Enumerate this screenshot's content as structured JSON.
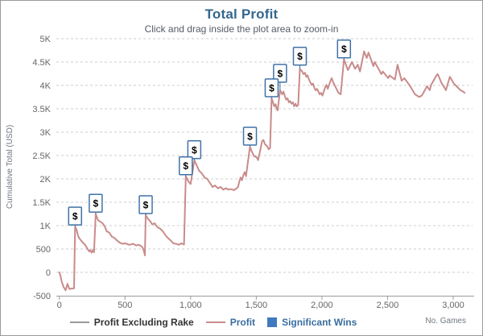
{
  "header": {
    "title": "Total Profit",
    "subtitle": "Click and drag inside the plot area to zoom-in"
  },
  "legend": {
    "items": [
      {
        "label": "Profit Excluding Rake",
        "sample": "line",
        "sample_color": "#999999",
        "text_color": "#333333"
      },
      {
        "label": "Profit",
        "sample": "line",
        "sample_color": "#C98B8B",
        "text_color": "#3A6DA0"
      },
      {
        "label": "Significant Wins",
        "sample": "square",
        "sample_color": "#4179C0",
        "text_color": "#3A6DA0"
      }
    ]
  },
  "chart_data": {
    "type": "line",
    "title": "Total Profit",
    "subtitle": "Click and drag inside the plot area to zoom-in",
    "xlabel": "No. Games",
    "ylabel": "Cumulative Total (USD)",
    "xlim": [
      0,
      3160
    ],
    "ylim": [
      -500,
      5000
    ],
    "grid": "horizontal dotted lines only",
    "legend_position": "bottom-center",
    "x_ticks": [
      {
        "value": 0,
        "label": "0"
      },
      {
        "value": 500,
        "label": "500"
      },
      {
        "value": 1000,
        "label": "1,000"
      },
      {
        "value": 1500,
        "label": "1,500"
      },
      {
        "value": 2000,
        "label": "2,000"
      },
      {
        "value": 2500,
        "label": "2,500"
      },
      {
        "value": 3000,
        "label": "3,000"
      }
    ],
    "y_ticks": [
      {
        "value": -500,
        "label": "-500"
      },
      {
        "value": 0,
        "label": "0"
      },
      {
        "value": 500,
        "label": "500"
      },
      {
        "value": 1000,
        "label": "1K"
      },
      {
        "value": 1500,
        "label": "1.5K"
      },
      {
        "value": 2000,
        "label": "2K"
      },
      {
        "value": 2500,
        "label": "2.5K"
      },
      {
        "value": 3000,
        "label": "3K"
      },
      {
        "value": 3500,
        "label": "3.5K"
      },
      {
        "value": 4000,
        "label": "4K"
      },
      {
        "value": 4500,
        "label": "4.5K"
      },
      {
        "value": 5000,
        "label": "5K"
      }
    ],
    "colors": {
      "title": "#34678D",
      "subtitle": "#555C66",
      "tick_label": "#666666",
      "axis_label": "#6F7780",
      "grid": "#CCCCCC",
      "axis_line": "#9B9B9B",
      "profit_line": "#C98B8B",
      "flag_fill": "#FFFFFF",
      "flag_border": "#4172A8",
      "flag_text": "#000000",
      "significant_wins": "#4179C0"
    },
    "series": [
      {
        "name": "Profit Excluding Rake",
        "color": "#999999",
        "visible_in_plot": false,
        "points": []
      },
      {
        "name": "Profit",
        "color": "#C98B8B",
        "visible_in_plot": true,
        "points": [
          [
            0,
            0
          ],
          [
            8,
            -60
          ],
          [
            18,
            -195
          ],
          [
            32,
            -310
          ],
          [
            48,
            -385
          ],
          [
            62,
            -245
          ],
          [
            76,
            -355
          ],
          [
            112,
            -340
          ],
          [
            120,
            980
          ],
          [
            131,
            910
          ],
          [
            142,
            790
          ],
          [
            150,
            735
          ],
          [
            163,
            690
          ],
          [
            175,
            650
          ],
          [
            196,
            590
          ],
          [
            214,
            505
          ],
          [
            227,
            450
          ],
          [
            236,
            478
          ],
          [
            246,
            420
          ],
          [
            256,
            478
          ],
          [
            264,
            430
          ],
          [
            277,
            1255
          ],
          [
            287,
            1170
          ],
          [
            297,
            1110
          ],
          [
            315,
            1080
          ],
          [
            330,
            1050
          ],
          [
            349,
            965
          ],
          [
            360,
            880
          ],
          [
            380,
            850
          ],
          [
            400,
            765
          ],
          [
            420,
            735
          ],
          [
            441,
            680
          ],
          [
            461,
            633
          ],
          [
            482,
            610
          ],
          [
            502,
            620
          ],
          [
            532,
            590
          ],
          [
            563,
            610
          ],
          [
            584,
            575
          ],
          [
            604,
            590
          ],
          [
            615,
            575
          ],
          [
            634,
            535
          ],
          [
            645,
            450
          ],
          [
            652,
            362
          ],
          [
            658,
            1225
          ],
          [
            676,
            1140
          ],
          [
            688,
            1110
          ],
          [
            708,
            1025
          ],
          [
            726,
            1052
          ],
          [
            747,
            966
          ],
          [
            767,
            937
          ],
          [
            788,
            879
          ],
          [
            808,
            793
          ],
          [
            828,
            735
          ],
          [
            849,
            678
          ],
          [
            869,
            621
          ],
          [
            890,
            609
          ],
          [
            910,
            590
          ],
          [
            930,
            621
          ],
          [
            950,
            595
          ],
          [
            963,
            2057
          ],
          [
            984,
            1940
          ],
          [
            1000,
            1890
          ],
          [
            1028,
            2400
          ],
          [
            1065,
            2172
          ],
          [
            1086,
            2115
          ],
          [
            1106,
            2029
          ],
          [
            1126,
            2000
          ],
          [
            1147,
            1914
          ],
          [
            1167,
            1828
          ],
          [
            1187,
            1857
          ],
          [
            1208,
            1799
          ],
          [
            1228,
            1828
          ],
          [
            1248,
            1771
          ],
          [
            1269,
            1799
          ],
          [
            1289,
            1771
          ],
          [
            1310,
            1781
          ],
          [
            1330,
            1759
          ],
          [
            1350,
            1799
          ],
          [
            1361,
            1828
          ],
          [
            1371,
            1943
          ],
          [
            1381,
            2029
          ],
          [
            1391,
            1971
          ],
          [
            1402,
            2086
          ],
          [
            1412,
            2143
          ],
          [
            1422,
            2057
          ],
          [
            1452,
            2690
          ],
          [
            1463,
            2603
          ],
          [
            1473,
            2546
          ],
          [
            1483,
            2488
          ],
          [
            1504,
            2460
          ],
          [
            1514,
            2402
          ],
          [
            1534,
            2661
          ],
          [
            1544,
            2804
          ],
          [
            1555,
            2832
          ],
          [
            1565,
            2747
          ],
          [
            1585,
            2690
          ],
          [
            1595,
            2632
          ],
          [
            1605,
            2661
          ],
          [
            1617,
            3724
          ],
          [
            1627,
            3638
          ],
          [
            1637,
            3552
          ],
          [
            1647,
            3598
          ],
          [
            1656,
            3494
          ],
          [
            1663,
            3466
          ],
          [
            1681,
            3897
          ],
          [
            1697,
            3810
          ],
          [
            1707,
            3868
          ],
          [
            1717,
            3781
          ],
          [
            1728,
            3695
          ],
          [
            1738,
            3724
          ],
          [
            1748,
            3638
          ],
          [
            1758,
            3667
          ],
          [
            1768,
            3609
          ],
          [
            1779,
            3638
          ],
          [
            1789,
            3552
          ],
          [
            1799,
            3609
          ],
          [
            1809,
            3552
          ],
          [
            1819,
            3581
          ],
          [
            1832,
            4350
          ],
          [
            1850,
            4299
          ],
          [
            1860,
            4241
          ],
          [
            1871,
            4270
          ],
          [
            1881,
            4184
          ],
          [
            1891,
            4213
          ],
          [
            1901,
            4126
          ],
          [
            1911,
            4069
          ],
          [
            1922,
            4011
          ],
          [
            1932,
            4040
          ],
          [
            1942,
            3954
          ],
          [
            1952,
            3897
          ],
          [
            1963,
            3925
          ],
          [
            1973,
            3868
          ],
          [
            1983,
            3810
          ],
          [
            1993,
            3839
          ],
          [
            2004,
            3782
          ],
          [
            2014,
            3868
          ],
          [
            2024,
            3954
          ],
          [
            2034,
            4011
          ],
          [
            2045,
            3925
          ],
          [
            2065,
            4097
          ],
          [
            2075,
            4155
          ],
          [
            2085,
            4069
          ],
          [
            2096,
            4011
          ],
          [
            2106,
            3954
          ],
          [
            2116,
            3897
          ],
          [
            2126,
            3839
          ],
          [
            2143,
            3810
          ],
          [
            2168,
            4557
          ],
          [
            2198,
            4328
          ],
          [
            2229,
            4500
          ],
          [
            2253,
            4356
          ],
          [
            2273,
            4443
          ],
          [
            2290,
            4299
          ],
          [
            2321,
            4730
          ],
          [
            2341,
            4586
          ],
          [
            2355,
            4702
          ],
          [
            2392,
            4414
          ],
          [
            2402,
            4500
          ],
          [
            2453,
            4241
          ],
          [
            2464,
            4299
          ],
          [
            2505,
            4155
          ],
          [
            2515,
            4212
          ],
          [
            2556,
            4126
          ],
          [
            2576,
            4443
          ],
          [
            2607,
            4098
          ],
          [
            2628,
            4155
          ],
          [
            2658,
            4040
          ],
          [
            2679,
            3954
          ],
          [
            2709,
            3810
          ],
          [
            2740,
            3753
          ],
          [
            2760,
            3781
          ],
          [
            2801,
            3983
          ],
          [
            2821,
            3897
          ],
          [
            2832,
            4012
          ],
          [
            2872,
            4212
          ],
          [
            2882,
            4241
          ],
          [
            2913,
            4040
          ],
          [
            2933,
            3954
          ],
          [
            2944,
            3897
          ],
          [
            2974,
            4184
          ],
          [
            3005,
            4040
          ],
          [
            3025,
            3983
          ],
          [
            3056,
            3897
          ],
          [
            3076,
            3868
          ],
          [
            3087,
            3839
          ]
        ]
      }
    ],
    "flags": {
      "name": "Significant Wins",
      "symbol": "$",
      "points": [
        {
          "x": 120,
          "y": 980,
          "stem": 2
        },
        {
          "x": 277,
          "y": 1255,
          "stem": 2
        },
        {
          "x": 658,
          "y": 1225,
          "stem": 2
        },
        {
          "x": 963,
          "y": 2057,
          "stem": 2
        },
        {
          "x": 1028,
          "y": 2400,
          "stem": 2
        },
        {
          "x": 1452,
          "y": 2690,
          "stem": 2
        },
        {
          "x": 1617,
          "y": 3724,
          "stem": 2
        },
        {
          "x": 1681,
          "y": 3897,
          "stem": 10
        },
        {
          "x": 1832,
          "y": 4350,
          "stem": 5
        },
        {
          "x": 2168,
          "y": 4557,
          "stem": 2
        }
      ]
    }
  }
}
